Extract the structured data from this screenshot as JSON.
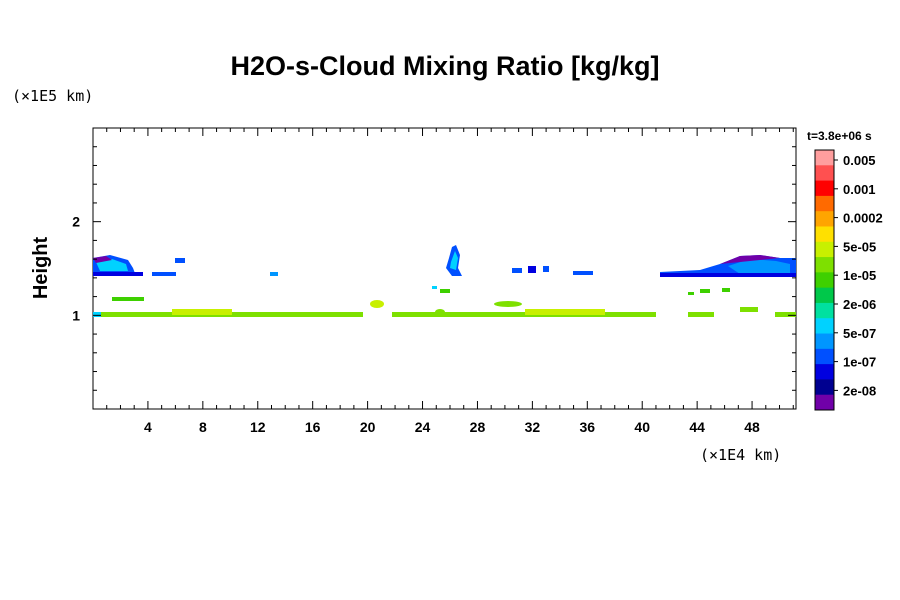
{
  "chart_data": {
    "type": "heatmap",
    "title": "H2O-s-Cloud Mixing Ratio [kg/kg]",
    "ylabel": "Height",
    "x_unit": "(×1E4 km)",
    "y_unit": "(×1E5 km)",
    "time_label": "t=3.8e+06 s",
    "xlim": [
      0,
      51.2
    ],
    "ylim": [
      0,
      3.0
    ],
    "x_ticks": [
      4,
      8,
      12,
      16,
      20,
      24,
      28,
      32,
      36,
      40,
      44,
      48
    ],
    "y_ticks": [
      1,
      2
    ],
    "colorbar": {
      "labels": [
        "0.005",
        "0.001",
        "0.0002",
        "5e-05",
        "1e-05",
        "2e-06",
        "5e-07",
        "1e-07",
        "2e-08"
      ],
      "colors": [
        "#ff9e9e",
        "#ff5050",
        "#ff0000",
        "#ff6a00",
        "#ffa500",
        "#ffe000",
        "#c8f000",
        "#7ee000",
        "#3ed000",
        "#00c84a",
        "#00e0a0",
        "#00d2ff",
        "#0096ff",
        "#0050ff",
        "#0000e0",
        "#000090",
        "#7000a8"
      ]
    },
    "regions": [
      {
        "name": "cloud-layer-1km",
        "level": "1e-05",
        "x": [
          0,
          19.5
        ],
        "y": [
          0.98,
          1.03
        ]
      },
      {
        "name": "cloud-layer-1km-b",
        "level": "1e-05",
        "x": [
          21.8,
          40.8
        ],
        "y": [
          0.98,
          1.03
        ]
      },
      {
        "name": "cloud-layer-1km-c",
        "level": "1e-05",
        "x": [
          43.5,
          51.2
        ],
        "y": [
          0.98,
          1.03
        ]
      },
      {
        "name": "upper-cloud-left",
        "level": "1e-07",
        "x": [
          0,
          3.6
        ],
        "y": [
          1.42,
          1.6
        ]
      },
      {
        "name": "upper-cloud-right",
        "level": "1e-07",
        "x": [
          41.3,
          51.2
        ],
        "y": [
          1.42,
          1.6
        ]
      },
      {
        "name": "convective-plume",
        "level": "1e-07",
        "x": [
          25.5,
          26.5
        ],
        "y": [
          1.38,
          1.72
        ]
      }
    ]
  }
}
